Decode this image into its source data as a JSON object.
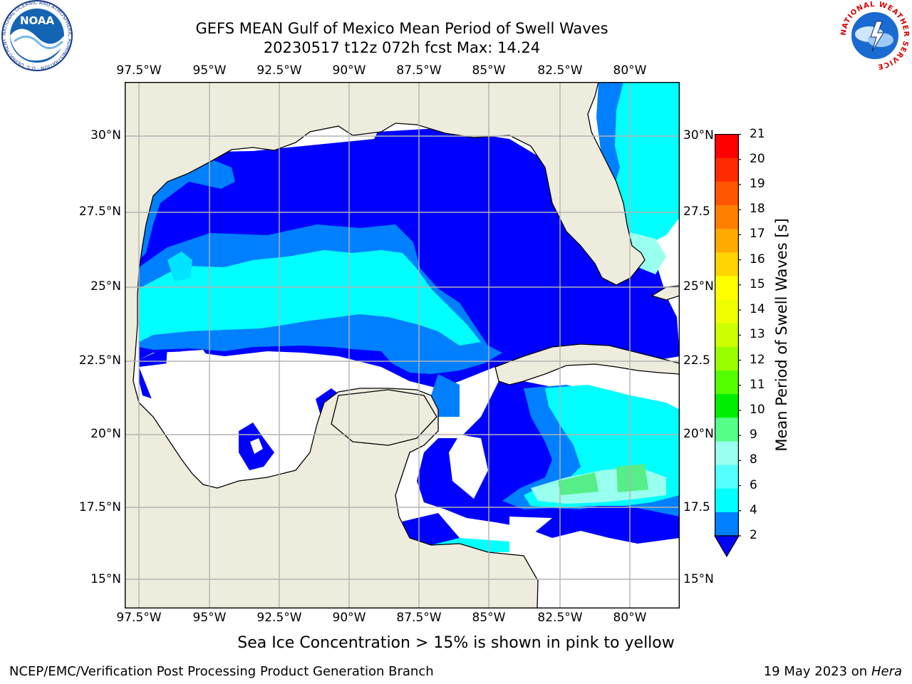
{
  "title": {
    "line1": "GEFS MEAN Gulf of Mexico Mean Period of Swell Waves",
    "line2": "20230517 t12z 072h fcst   Max: 14.24"
  },
  "map": {
    "lon_labels": [
      "97.5°W",
      "95°W",
      "92.5°W",
      "90°W",
      "87.5°W",
      "85°W",
      "82.5°W",
      "80°W"
    ],
    "lat_labels_left": [
      "30°N",
      "27.5°N",
      "25°N",
      "22.5°N",
      "20°N",
      "17.5°N",
      "15°N"
    ],
    "lat_labels_right": [
      "30°N",
      "27.5",
      "25°N",
      "22.5",
      "20°N",
      "17.5",
      "15°N"
    ],
    "colors": {
      "land": "#eeecdc",
      "grid": "#b3b3b3",
      "coast": "#000000"
    }
  },
  "colorbar": {
    "label": "Mean Period of Swell Waves [s]",
    "ticks": [
      "21",
      "20",
      "19",
      "18",
      "17",
      "16",
      "15",
      "14",
      "13",
      "12",
      "11",
      "10",
      "9",
      "8",
      "6",
      "4",
      "2"
    ],
    "colors": [
      "#ff0000",
      "#ff2a00",
      "#ff5500",
      "#ff8000",
      "#ffaa00",
      "#ffd500",
      "#ffff00",
      "#eeff00",
      "#ccff00",
      "#99ff00",
      "#55ff00",
      "#00ee00",
      "#55ff88",
      "#99ffee",
      "#55ffff",
      "#00ffff",
      "#0080ff",
      "#0000ff"
    ]
  },
  "note": "Sea Ice Concentration > 15% is shown in pink to yellow",
  "footer": {
    "left": "NCEP/EMC/Verification Post Processing Product Generation Branch",
    "right_prefix": "19 May 2023 on",
    "right_host": "Hera"
  },
  "logos": {
    "noaa": "NOAA",
    "noaa_ring": "NATIONAL OCEANIC AND ATMOSPHERIC ADMINISTRATION · U.S. DEPARTMENT OF COMMERCE",
    "nws_ring": "NATIONAL WEATHER SERVICE"
  }
}
